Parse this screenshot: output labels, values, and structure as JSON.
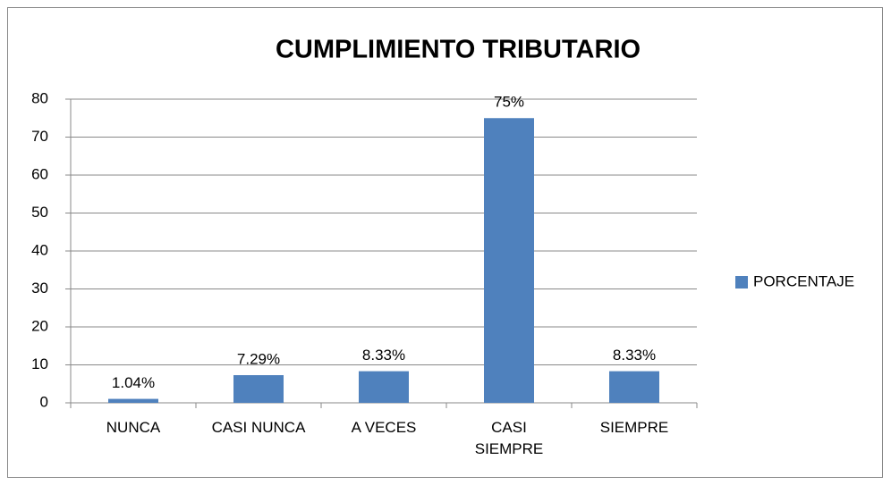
{
  "chart_data": {
    "type": "bar",
    "title": "CUMPLIMIENTO TRIBUTARIO",
    "categories": [
      "NUNCA",
      "CASI NUNCA",
      "A VECES",
      "CASI SIEMPRE",
      "SIEMPRE"
    ],
    "series": [
      {
        "name": "PORCENTAJE",
        "color": "#4f81bd",
        "values": [
          1.04,
          7.29,
          8.33,
          75,
          8.33
        ],
        "value_labels": [
          "1.04%",
          "7.29%",
          "8.33%",
          "75%",
          "8.33%"
        ]
      }
    ],
    "ylim": [
      0,
      80
    ],
    "yticks": [
      0,
      10,
      20,
      30,
      40,
      50,
      60,
      70,
      80
    ],
    "grid": true,
    "legend": "right"
  }
}
